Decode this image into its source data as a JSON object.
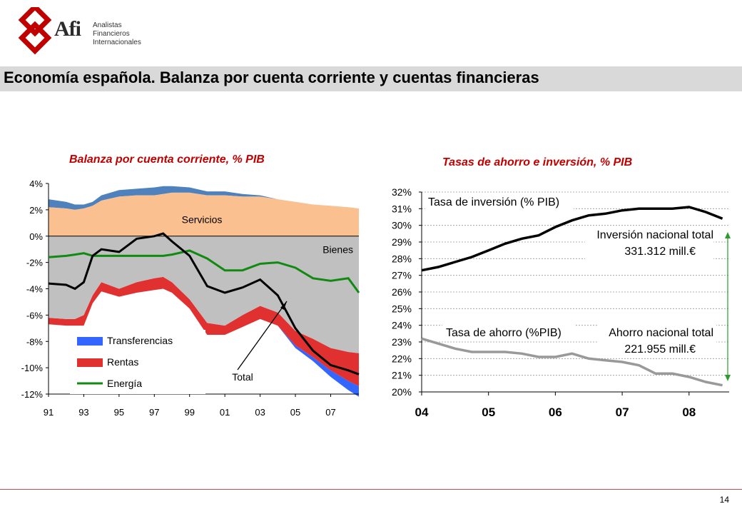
{
  "header": {
    "logo_text": "Afi",
    "logo_subtitle": [
      "Analistas",
      "Financieros",
      "Internacionales"
    ],
    "title": "Economía española. Balanza por cuenta corriente y cuentas financieras"
  },
  "footer": {
    "page_number": "14"
  },
  "colors": {
    "title_bar": "#d9d9d9",
    "chart_title": "#c00000",
    "servicios": "#fac090",
    "servicios_top": "#4f81bd",
    "bienes": "#c0c0c0",
    "transferencias": "#3366ff",
    "rentas": "#e03030",
    "energia": "#118a11",
    "total": "#000000",
    "inversion": "#000000",
    "ahorro": "#999999",
    "gap_arrow": "#2e9b2e"
  },
  "chart_data": [
    {
      "type": "area",
      "title": "Balanza por cuenta corriente, % PIB",
      "ylim": [
        -12,
        4
      ],
      "yticks": [
        "4%",
        "2%",
        "0%",
        "-2%",
        "-4%",
        "-6%",
        "-8%",
        "-10%",
        "-12%"
      ],
      "xlim": [
        1991,
        2008.6
      ],
      "xticks": [
        "91",
        "93",
        "95",
        "97",
        "99",
        "01",
        "03",
        "05",
        "07"
      ],
      "grid": false,
      "legend": [
        "Transferencias",
        "Rentas",
        "Energía"
      ],
      "annotations": [
        "Servicios",
        "Bienes",
        "Total"
      ],
      "x": [
        1991,
        1992,
        1992.5,
        1993,
        1993.5,
        1994,
        1995,
        1996,
        1997,
        1997.5,
        1998,
        1999,
        2000,
        2001,
        2002,
        2003,
        2004,
        2005,
        2006,
        2007,
        2008,
        2008.6
      ],
      "series": [
        {
          "name": "Servicios",
          "values": [
            2.2,
            2.1,
            2.0,
            2.1,
            2.3,
            2.7,
            3.0,
            3.1,
            3.1,
            3.2,
            3.3,
            3.3,
            3.1,
            3.1,
            3.0,
            3.0,
            2.8,
            2.6,
            2.4,
            2.3,
            2.2,
            2.1
          ]
        },
        {
          "name": "Transferencias",
          "values": [
            0.6,
            0.5,
            0.4,
            0.3,
            0.3,
            0.4,
            0.5,
            0.5,
            0.6,
            0.6,
            0.5,
            0.4,
            0.3,
            0.3,
            0.2,
            0.1,
            0.0,
            -0.2,
            -0.3,
            -0.5,
            -0.7,
            -0.8
          ]
        },
        {
          "name": "Bienes",
          "values": [
            -6.2,
            -6.3,
            -6.3,
            -6.0,
            -4.5,
            -3.5,
            -4.0,
            -3.5,
            -3.2,
            -3.1,
            -3.5,
            -4.8,
            -6.6,
            -6.8,
            -6.0,
            -5.3,
            -5.8,
            -7.2,
            -7.8,
            -8.5,
            -8.8,
            -8.9
          ]
        },
        {
          "name": "Rentas",
          "values": [
            -6.7,
            -6.8,
            -6.8,
            -6.8,
            -5.1,
            -4.2,
            -4.6,
            -4.3,
            -4.1,
            -4.0,
            -4.3,
            -5.5,
            -7.5,
            -7.5,
            -6.9,
            -6.3,
            -6.8,
            -8.3,
            -9.2,
            -10.2,
            -11.0,
            -11.4
          ]
        },
        {
          "name": "Energía",
          "values": [
            -1.6,
            -1.5,
            -1.4,
            -1.3,
            -1.5,
            -1.5,
            -1.5,
            -1.5,
            -1.5,
            -1.5,
            -1.4,
            -1.1,
            -1.7,
            -2.6,
            -2.6,
            -2.1,
            -2.0,
            -2.4,
            -3.2,
            -3.4,
            -3.2,
            -4.3
          ]
        },
        {
          "name": "Total",
          "values": [
            -3.6,
            -3.7,
            -4.0,
            -3.5,
            -1.5,
            -1.0,
            -1.2,
            -0.2,
            0.0,
            0.2,
            -0.4,
            -1.5,
            -3.8,
            -4.3,
            -3.9,
            -3.3,
            -4.5,
            -7.0,
            -8.7,
            -9.8,
            -10.2,
            -10.5
          ]
        }
      ]
    },
    {
      "type": "line",
      "title": "Tasas de ahorro e inversión, % PIB",
      "ylim": [
        20,
        32
      ],
      "yticks": [
        "32%",
        "31%",
        "30%",
        "29%",
        "28%",
        "27%",
        "26%",
        "25%",
        "24%",
        "23%",
        "22%",
        "21%",
        "20%"
      ],
      "xlim": [
        2004,
        2008.6
      ],
      "xticks": [
        "04",
        "05",
        "06",
        "07",
        "08"
      ],
      "grid": true,
      "x": [
        2004,
        2004.25,
        2004.5,
        2004.75,
        2005,
        2005.25,
        2005.5,
        2005.75,
        2006,
        2006.25,
        2006.5,
        2006.75,
        2007,
        2007.25,
        2007.5,
        2007.75,
        2008,
        2008.25,
        2008.5
      ],
      "series": [
        {
          "name": "Tasa de inversión (% PIB)",
          "values": [
            27.3,
            27.5,
            27.8,
            28.1,
            28.5,
            28.9,
            29.2,
            29.4,
            29.9,
            30.3,
            30.6,
            30.7,
            30.9,
            31.0,
            31.0,
            31.0,
            31.1,
            30.8,
            30.4
          ]
        },
        {
          "name": "Tasa de ahorro (%PIB)",
          "values": [
            23.2,
            22.9,
            22.6,
            22.4,
            22.4,
            22.4,
            22.3,
            22.1,
            22.1,
            22.3,
            22.0,
            21.9,
            21.8,
            21.6,
            21.1,
            21.1,
            20.9,
            20.6,
            20.4
          ]
        }
      ],
      "annotations": [
        {
          "label": "Inversión nacional total",
          "value": "331.312 mill.€"
        },
        {
          "label": "Ahorro nacional total",
          "value": "221.955 mill.€"
        }
      ]
    }
  ]
}
